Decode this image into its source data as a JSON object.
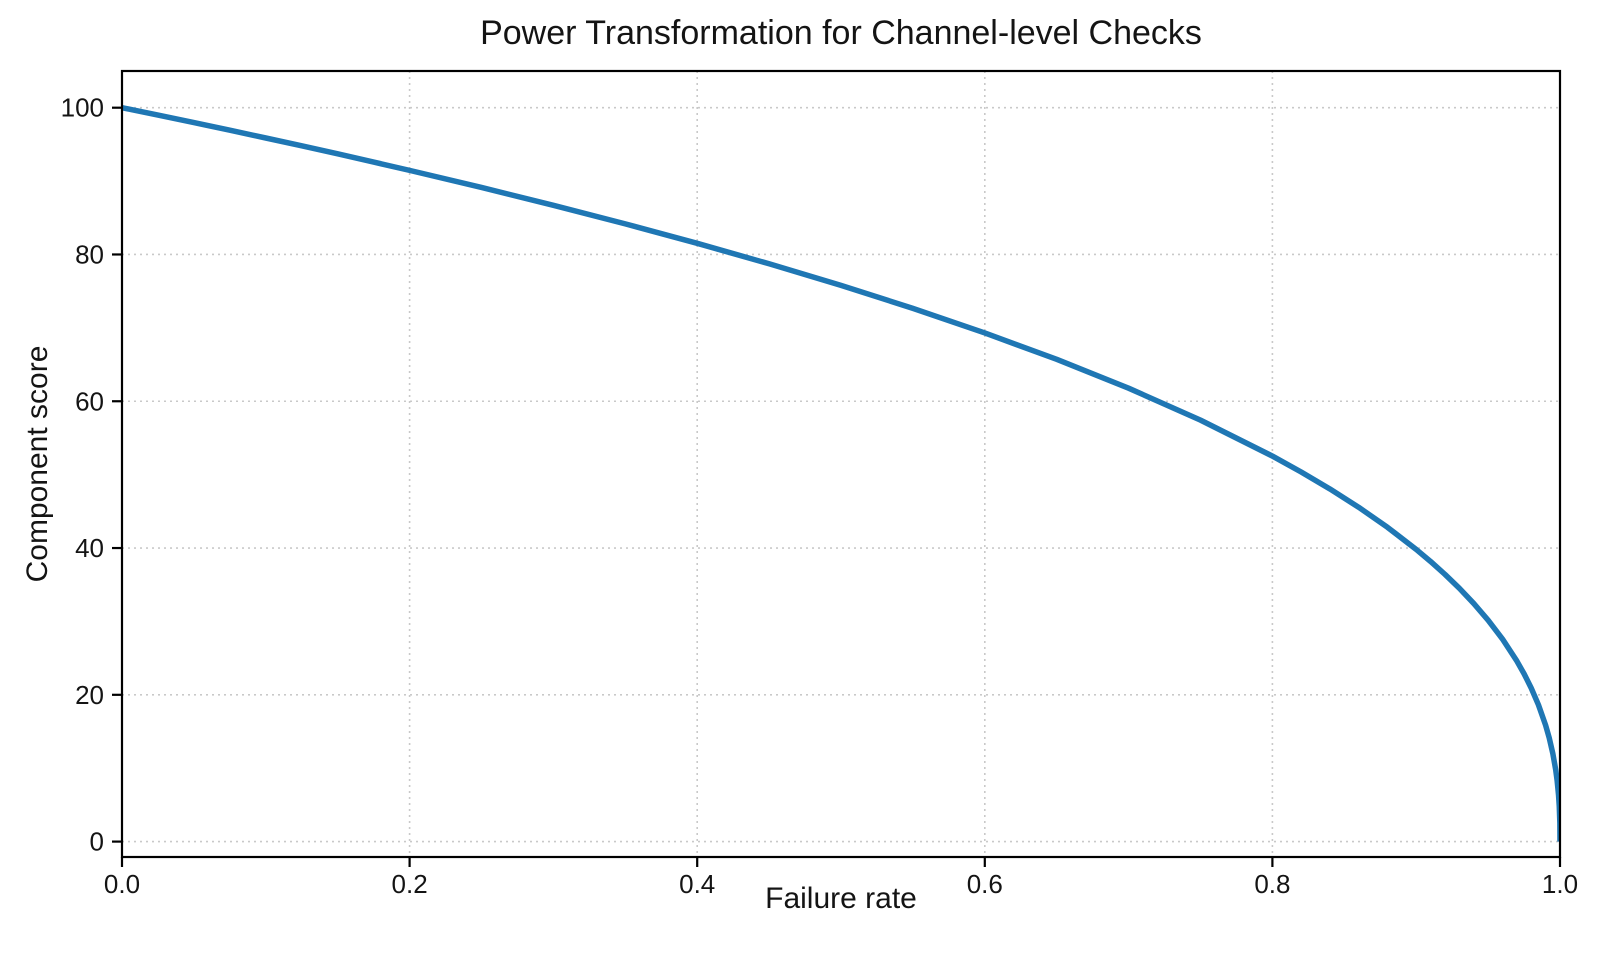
{
  "figure": {
    "background": "#ffffff"
  },
  "chart_data": {
    "type": "line",
    "title": "Power Transformation for Channel-level Checks",
    "xlabel": "Failure rate",
    "ylabel": "Component score",
    "xlim": [
      0.0,
      1.0
    ],
    "ylim": [
      -2.1,
      105
    ],
    "xticks": [
      0.0,
      0.2,
      0.4,
      0.6,
      0.8,
      1.0
    ],
    "xtick_labels": [
      "0.0",
      "0.2",
      "0.4",
      "0.6",
      "0.8",
      "1.0"
    ],
    "yticks": [
      0,
      20,
      40,
      60,
      80,
      100
    ],
    "ytick_labels": [
      "0",
      "20",
      "40",
      "60",
      "80",
      "100"
    ],
    "grid": true,
    "grid_style": "dotted",
    "legend": false,
    "series": [
      {
        "name": "component-score-curve",
        "formula": "y = 100 * (1 - x)^0.4",
        "power": 0.4,
        "amplitude": 100,
        "color": "#1f77b4",
        "line_width": 5.5,
        "points": [
          [
            0,
            100
          ],
          [
            0.025,
            98.99
          ],
          [
            0.05,
            97.97
          ],
          [
            0.075,
            96.93
          ],
          [
            0.1,
            95.87
          ],
          [
            0.125,
            94.8
          ],
          [
            0.15,
            93.71
          ],
          [
            0.175,
            92.59
          ],
          [
            0.2,
            91.46
          ],
          [
            0.25,
            89.13
          ],
          [
            0.3,
            86.7
          ],
          [
            0.35,
            84.17
          ],
          [
            0.4,
            81.52
          ],
          [
            0.45,
            78.73
          ],
          [
            0.5,
            75.79
          ],
          [
            0.55,
            72.66
          ],
          [
            0.6,
            69.31
          ],
          [
            0.65,
            65.71
          ],
          [
            0.7,
            61.78
          ],
          [
            0.75,
            57.43
          ],
          [
            0.8,
            52.53
          ],
          [
            0.82,
            50.36
          ],
          [
            0.84,
            48.05
          ],
          [
            0.86,
            45.55
          ],
          [
            0.88,
            42.83
          ],
          [
            0.9,
            39.81
          ],
          [
            0.91,
            38.17
          ],
          [
            0.92,
            36.41
          ],
          [
            0.93,
            34.52
          ],
          [
            0.94,
            32.45
          ],
          [
            0.95,
            30.17
          ],
          [
            0.96,
            27.6
          ],
          [
            0.97,
            24.6
          ],
          [
            0.975,
            22.87
          ],
          [
            0.98,
            20.91
          ],
          [
            0.985,
            18.64
          ],
          [
            0.99,
            15.85
          ],
          [
            0.9925,
            14.13
          ],
          [
            0.995,
            12.01
          ],
          [
            0.997,
            9.79
          ],
          [
            0.998,
            8.33
          ],
          [
            0.999,
            6.31
          ],
          [
            0.9995,
            4.78
          ],
          [
            0.9999,
            2.51
          ],
          [
            1,
            0
          ]
        ]
      }
    ],
    "colors": {
      "line": "#1f77b4",
      "grid": "#c9c9c9",
      "spine": "#000000",
      "text": "#141414"
    }
  }
}
